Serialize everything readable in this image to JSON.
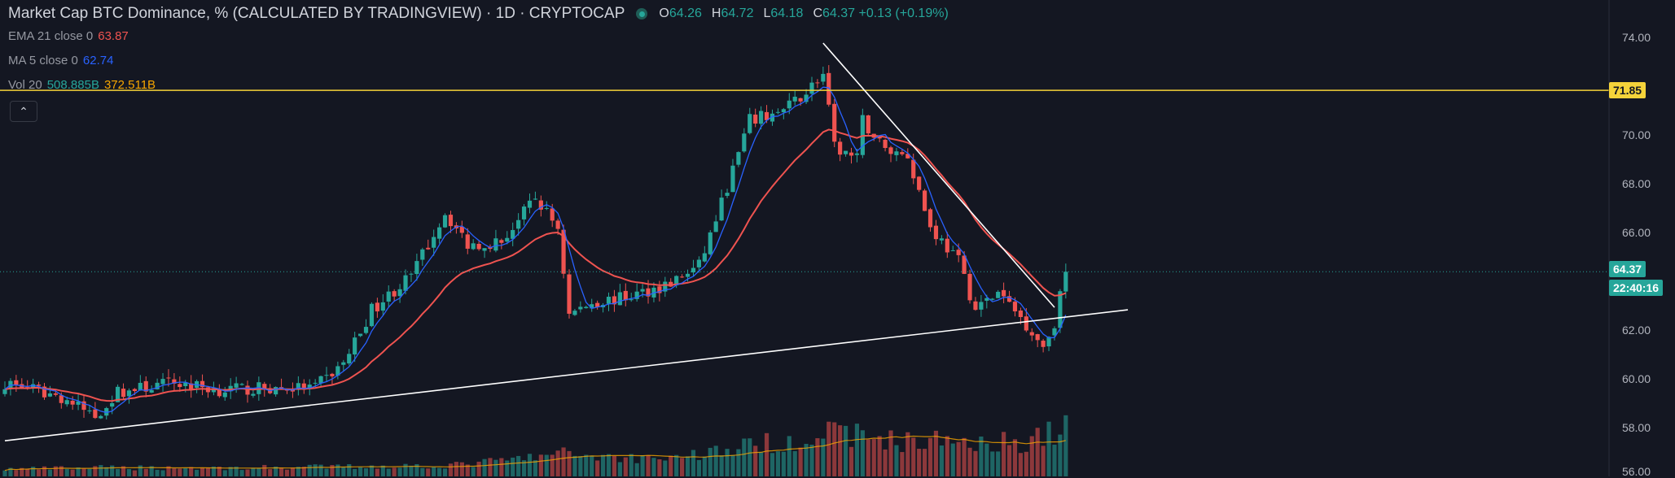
{
  "header": {
    "title": "Market Cap BTC Dominance, % (CALCULATED BY TRADINGVIEW) · 1D · CRYPTOCAP",
    "ohlc": [
      {
        "k": "O",
        "v": "64.26"
      },
      {
        "k": "H",
        "v": "64.72"
      },
      {
        "k": "L",
        "v": "64.18"
      },
      {
        "k": "C",
        "v": "64.37 +0.13 (+0.19%)"
      }
    ]
  },
  "indicators": {
    "ema": {
      "name": "EMA 21 close 0",
      "value": "63.87",
      "color": "#ef5350"
    },
    "ma": {
      "name": "MA 5 close 0",
      "value": "62.74",
      "color": "#2962ff"
    },
    "vol": {
      "name": "Vol 20",
      "value1": "508.885B",
      "value2": "372.511B",
      "color1": "#26a69a",
      "color2": "#f7a600"
    }
  },
  "collapse_icon": "chevron-up-icon",
  "price_axis": {
    "ticks": [
      "74.00",
      "70.00",
      "68.00",
      "66.00",
      "62.00",
      "60.00",
      "58.00",
      "56.00"
    ],
    "horizontal_line_label": "71.85",
    "last_price_label": "64.37",
    "countdown_label": "22:40:16"
  },
  "colors": {
    "up": "#26a69a",
    "down": "#ef5350",
    "hline": "#f5d33a",
    "trendline": "#ffffff",
    "ema": "#ef5350",
    "ma": "#2962ff",
    "vol_ma": "#f7a600",
    "background": "#141722"
  },
  "chart_data": {
    "type": "candlestick",
    "ylim": [
      56,
      75
    ],
    "horizontal_line": 71.85,
    "last_price": 64.37,
    "trendlines": [
      {
        "from": [
          0,
          57.4
        ],
        "to": [
          199,
          62.8
        ]
      },
      {
        "from": [
          145,
          73.8
        ],
        "to": [
          186,
          62.9
        ]
      }
    ],
    "anchors": [
      [
        0,
        59.8
      ],
      [
        10,
        59.2
      ],
      [
        16,
        58.4
      ],
      [
        20,
        59.4
      ],
      [
        30,
        59.8
      ],
      [
        38,
        59.5
      ],
      [
        55,
        59.6
      ],
      [
        60,
        60.6
      ],
      [
        65,
        62.8
      ],
      [
        72,
        64.2
      ],
      [
        78,
        66.8
      ],
      [
        82,
        65.5
      ],
      [
        88,
        65.6
      ],
      [
        94,
        67.4
      ],
      [
        98,
        66.2
      ],
      [
        100,
        62.6
      ],
      [
        104,
        63.1
      ],
      [
        110,
        63.3
      ],
      [
        118,
        63.9
      ],
      [
        123,
        64.6
      ],
      [
        127,
        67.2
      ],
      [
        132,
        70.6
      ],
      [
        138,
        71.0
      ],
      [
        141,
        71.6
      ],
      [
        145,
        72.5
      ],
      [
        147,
        69.5
      ],
      [
        151,
        69.0
      ],
      [
        152,
        70.6
      ],
      [
        156,
        69.4
      ],
      [
        160,
        69.2
      ],
      [
        164,
        66.2
      ],
      [
        169,
        64.8
      ],
      [
        172,
        62.8
      ],
      [
        176,
        63.5
      ],
      [
        180,
        62.5
      ],
      [
        184,
        61.3
      ],
      [
        186,
        62.3
      ],
      [
        188,
        64.4
      ]
    ],
    "volume_anchors": [
      [
        0,
        18
      ],
      [
        20,
        22
      ],
      [
        40,
        21
      ],
      [
        60,
        24
      ],
      [
        80,
        28
      ],
      [
        90,
        42
      ],
      [
        100,
        58
      ],
      [
        110,
        46
      ],
      [
        120,
        50
      ],
      [
        130,
        72
      ],
      [
        140,
        92
      ],
      [
        148,
        110
      ],
      [
        160,
        86
      ],
      [
        170,
        92
      ],
      [
        180,
        84
      ],
      [
        186,
        112
      ],
      [
        188,
        118
      ]
    ],
    "ema_period": 21,
    "ma_period": 5,
    "vol_ma_period": 20,
    "candle_count": 189
  }
}
